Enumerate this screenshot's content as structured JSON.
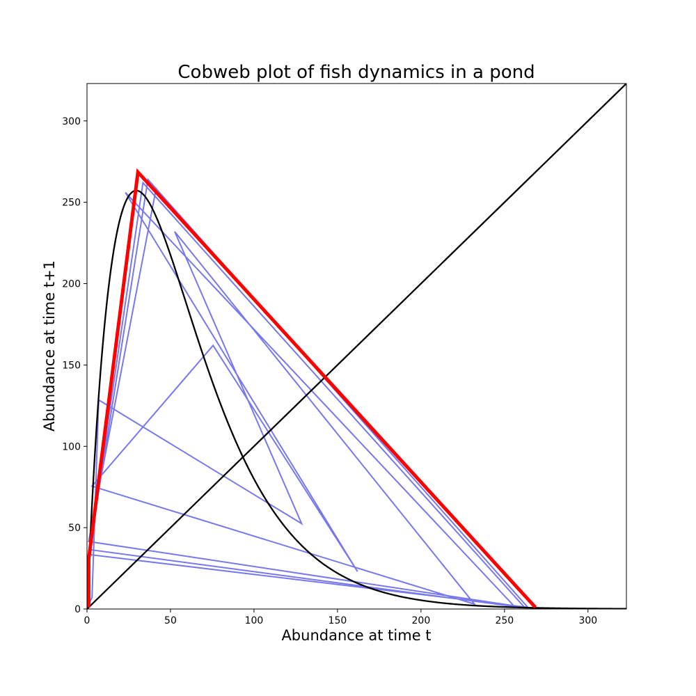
{
  "chart_data": {
    "type": "line",
    "title": "Cobweb plot of fish dynamics in a pond",
    "xlabel": "Abundance at time t",
    "ylabel": "Abundance at time t+1",
    "xlim": [
      0,
      323
    ],
    "ylim": [
      0,
      323
    ],
    "xticks": [
      0,
      50,
      100,
      150,
      200,
      250,
      300
    ],
    "yticks": [
      0,
      50,
      100,
      150,
      200,
      250,
      300
    ],
    "grid": false,
    "legend": "none",
    "map_model": {
      "a": 23.7,
      "b": 0.0339
    },
    "curve_samples": [
      [
        0,
        0
      ],
      [
        5,
        100.1
      ],
      [
        10,
        168.6
      ],
      [
        15,
        213
      ],
      [
        20,
        239.2
      ],
      [
        25,
        254.9
      ],
      [
        30,
        268.6
      ],
      [
        35,
        265
      ],
      [
        40,
        256
      ],
      [
        50,
        232
      ],
      [
        60,
        205
      ],
      [
        75,
        162
      ],
      [
        90,
        125
      ],
      [
        100,
        100
      ],
      [
        115,
        72
      ],
      [
        129,
        53
      ],
      [
        145,
        36
      ],
      [
        162,
        23
      ],
      [
        180,
        15
      ],
      [
        200,
        9
      ],
      [
        232,
        4.5
      ],
      [
        260,
        2.5
      ],
      [
        290,
        1.2
      ],
      [
        323,
        0.4
      ]
    ],
    "series": [
      {
        "type": "curve",
        "color": "#000000"
      },
      {
        "points": [
          [
            0,
            0
          ],
          [
            323,
            323
          ]
        ],
        "color": "#000000"
      },
      {
        "type": "cobweb",
        "color": "#7777ee",
        "points": [
          [
            1,
            3
          ],
          [
            3,
            7
          ],
          [
            7,
            128.5
          ],
          [
            128.5,
            52.5
          ],
          [
            52.5,
            232
          ],
          [
            232,
            3
          ],
          [
            3,
            75.5
          ],
          [
            75.5,
            162
          ],
          [
            162,
            23
          ],
          [
            23,
            256
          ],
          [
            256,
            1.5
          ],
          [
            1.5,
            36.5
          ],
          [
            36.5,
            264
          ],
          [
            264,
            1
          ],
          [
            1,
            33.5
          ],
          [
            33.5,
            262
          ],
          [
            262,
            1
          ],
          [
            1,
            41.5
          ],
          [
            41.5,
            259
          ]
        ]
      },
      {
        "type": "cobweb",
        "color": "#ff0000",
        "points": [
          [
            1,
            1
          ],
          [
            1,
            30.5
          ],
          [
            30.5,
            268.5
          ],
          [
            268.5,
            1
          ]
        ]
      }
    ]
  }
}
